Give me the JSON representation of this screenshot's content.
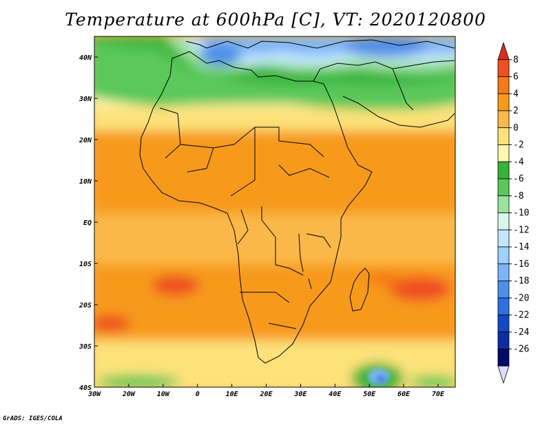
{
  "title": "Temperature at 600hPa [C], VT: 2020120800",
  "credit": "GrADS: IGES/COLA",
  "map": {
    "variable": "Temperature at 600hPa",
    "units": "C",
    "valid_time": "2020120800",
    "lon_range": [
      -30,
      75
    ],
    "lat_range": [
      -40,
      45
    ],
    "lat_labels": [
      "40N",
      "30N",
      "20N",
      "10N",
      "EQ",
      "10S",
      "20S",
      "30S",
      "40S"
    ],
    "lat_values": [
      40,
      30,
      20,
      10,
      0,
      -10,
      -20,
      -30,
      -40
    ],
    "lon_labels": [
      "30W",
      "20W",
      "10W",
      "0",
      "10E",
      "20E",
      "30E",
      "40E",
      "50E",
      "60E",
      "70E"
    ],
    "lon_values": [
      -30,
      -20,
      -10,
      0,
      10,
      20,
      30,
      40,
      50,
      60,
      70
    ]
  },
  "colorbar": {
    "levels": [
      "8",
      "6",
      "4",
      "2",
      "0",
      "-2",
      "-4",
      "-6",
      "-8",
      "-10",
      "-12",
      "-14",
      "-16",
      "-18",
      "-20",
      "-22",
      "-24",
      "-26"
    ],
    "colors": [
      "#d7301f",
      "#f05020",
      "#f57a18",
      "#f79a1c",
      "#fbb84a",
      "#fde27a",
      "#fff7b0",
      "#35b33a",
      "#5ac85a",
      "#9be39b",
      "#d8f6ee",
      "#c5e6ff",
      "#9fd0ff",
      "#7bb5f7",
      "#4e8fe8",
      "#2f6fde",
      "#1648c6",
      "#0b2ea3",
      "#000c66",
      "#dcdcff"
    ]
  }
}
